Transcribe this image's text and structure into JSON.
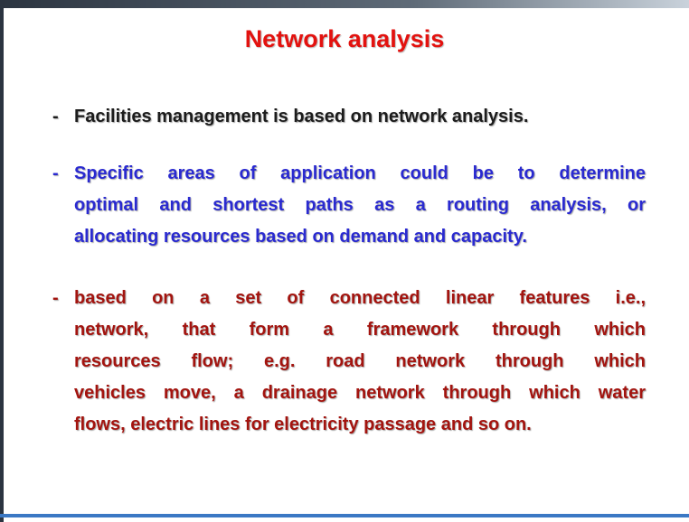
{
  "title": "Network analysis",
  "bullets": [
    {
      "marker": "-",
      "color": "#1c1c1c",
      "lines": [
        "Facilities management is based on network analysis."
      ]
    },
    {
      "marker": "-",
      "color": "#2a2ad0",
      "lines": [
        "Specific areas of application could be to determine",
        "optimal and shortest paths as a routing analysis, or",
        "allocating resources based on demand and capacity."
      ]
    },
    {
      "marker": "-",
      "color": "#a3140f",
      "lines": [
        "based on a set of connected linear features i.e.,",
        "network, that form a framework through which",
        "resources flow;  e.g. road network through which",
        "vehicles move, a drainage network through which water",
        "flows, electric lines for electricity passage and so on."
      ]
    }
  ]
}
